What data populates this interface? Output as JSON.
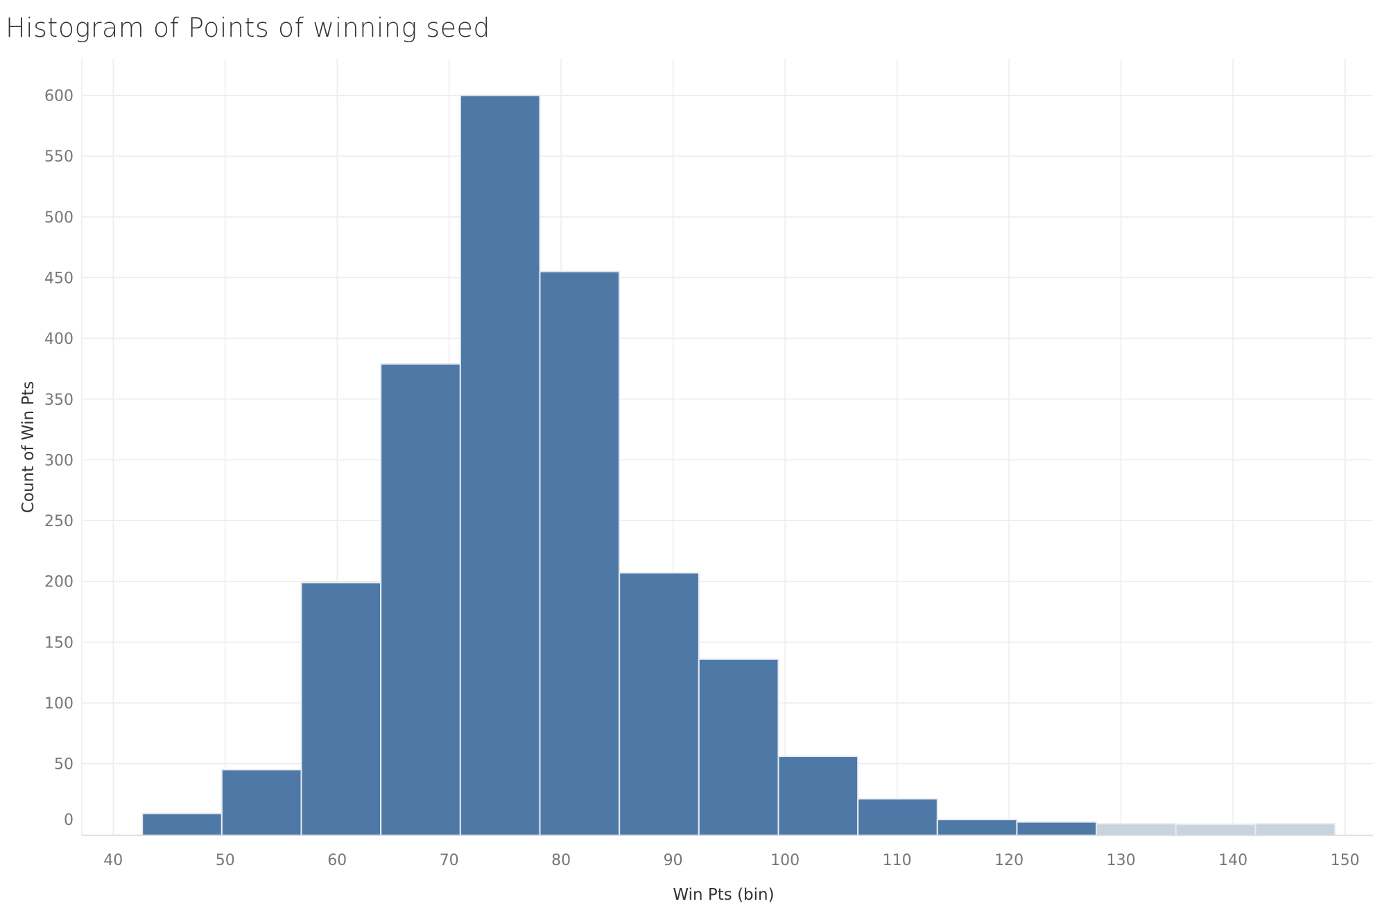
{
  "chart_data": {
    "type": "bar",
    "title": "Histogram of Points of winning seed",
    "xlabel": "Win Pts (bin)",
    "ylabel": "Count of Win Pts",
    "bin_width": 7.1,
    "bins": [
      {
        "start": 42.6,
        "count": 9
      },
      {
        "start": 49.7,
        "count": 45
      },
      {
        "start": 56.8,
        "count": 199
      },
      {
        "start": 63.9,
        "count": 379
      },
      {
        "start": 71.0,
        "count": 600
      },
      {
        "start": 78.1,
        "count": 455
      },
      {
        "start": 85.2,
        "count": 207
      },
      {
        "start": 92.3,
        "count": 136
      },
      {
        "start": 99.4,
        "count": 56
      },
      {
        "start": 106.5,
        "count": 21
      },
      {
        "start": 113.6,
        "count": 4
      },
      {
        "start": 120.7,
        "count": 2
      },
      {
        "start": 127.8,
        "count": 0.5
      },
      {
        "start": 134.9,
        "count": 0
      },
      {
        "start": 142.0,
        "count": 0.5
      }
    ],
    "xlim": [
      37.2,
      152.5
    ],
    "ylim": [
      -9,
      630
    ],
    "x_ticks": [
      40,
      50,
      60,
      70,
      80,
      90,
      100,
      110,
      120,
      130,
      140,
      150
    ],
    "y_ticks": [
      0,
      50,
      100,
      150,
      200,
      250,
      300,
      350,
      400,
      450,
      500,
      550,
      600
    ],
    "grid": true,
    "colors": {
      "bar": "#4e79a7",
      "bar_edge": "#e6eaf0",
      "grid": "#ececec",
      "axis": "#d9d9d9"
    }
  }
}
